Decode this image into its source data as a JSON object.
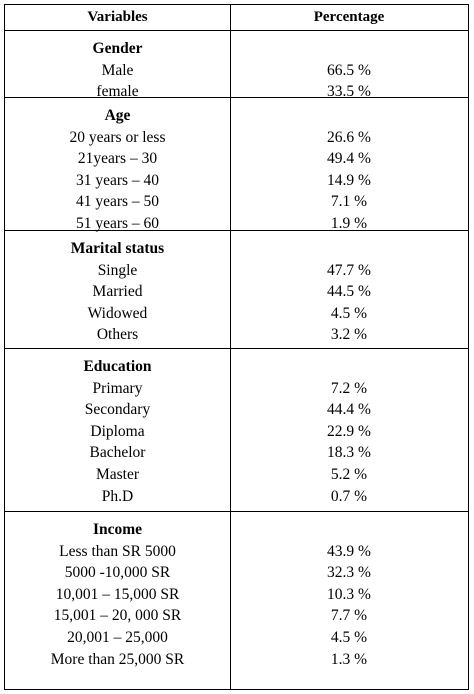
{
  "header": {
    "variables": "Variables",
    "percentage": "Percentage"
  },
  "sections": {
    "gender": {
      "title": "Gender",
      "rows": [
        {
          "label": "Male",
          "value": "66.5 %"
        },
        {
          "label": "female",
          "value": "33.5 %"
        }
      ]
    },
    "age": {
      "title": "Age",
      "rows": [
        {
          "label": "20 years or less",
          "value": "26.6 %"
        },
        {
          "label": "21years – 30",
          "value": "49.4 %"
        },
        {
          "label": "31 years – 40",
          "value": "14.9 %"
        },
        {
          "label": "41 years – 50",
          "value": "7.1 %"
        },
        {
          "label": "51 years – 60",
          "value": "1.9 %"
        }
      ]
    },
    "marital": {
      "title": "Marital status",
      "rows": [
        {
          "label": "Single",
          "value": "47.7 %"
        },
        {
          "label": "Married",
          "value": "44.5 %"
        },
        {
          "label": "Widowed",
          "value": "4.5 %"
        },
        {
          "label": "Others",
          "value": "3.2 %"
        }
      ]
    },
    "education": {
      "title": "Education",
      "rows": [
        {
          "label": "Primary",
          "value": "7.2 %"
        },
        {
          "label": "Secondary",
          "value": "44.4 %"
        },
        {
          "label": "Diploma",
          "value": "22.9 %"
        },
        {
          "label": "Bachelor",
          "value": "18.3 %"
        },
        {
          "label": "Master",
          "value": "5.2 %"
        },
        {
          "label": "Ph.D",
          "value": "0.7 %"
        }
      ]
    },
    "income": {
      "title": "Income",
      "rows": [
        {
          "label": "Less than SR 5000",
          "value": "43.9 %"
        },
        {
          "label": "5000 -10,000 SR",
          "value": "32.3 %"
        },
        {
          "label": "10,001 – 15,000 SR",
          "value": "10.3 %"
        },
        {
          "label": "15,001 – 20, 000 SR",
          "value": "7.7 %"
        },
        {
          "label": "20,001 – 25,000",
          "value": "4.5 %"
        },
        {
          "label": "More than 25,000 SR",
          "value": "1.3 %"
        }
      ]
    }
  }
}
